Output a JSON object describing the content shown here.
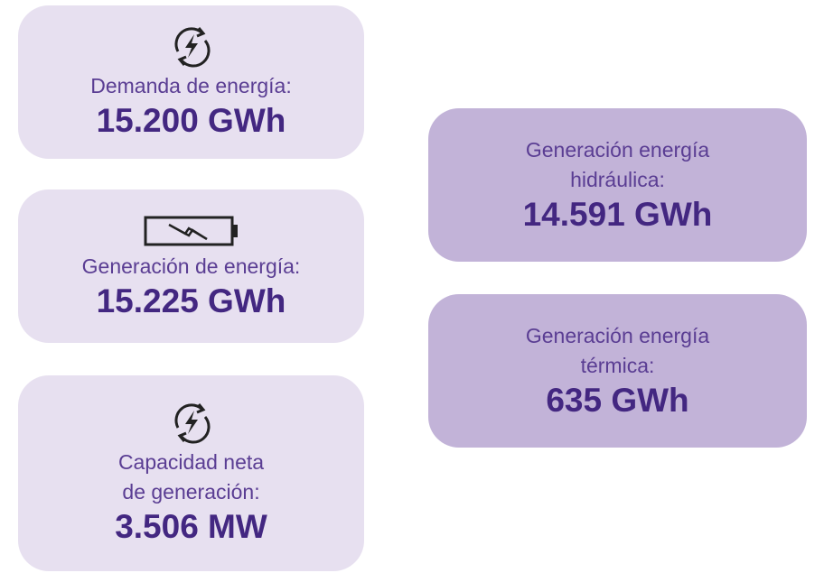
{
  "cards": [
    {
      "label": [
        "Demanda de energía:"
      ],
      "value": "15.200 GWh"
    },
    {
      "label": [
        "Generación de energía:"
      ],
      "value": "15.225 GWh"
    },
    {
      "label": [
        "Capacidad neta",
        "de generación:"
      ],
      "value": "3.506 MW"
    },
    {
      "label": [
        "Generación energía",
        "hidráulica:"
      ],
      "value": "14.591 GWh"
    },
    {
      "label": [
        "Generación energía",
        "térmica:"
      ],
      "value": "635 GWh"
    }
  ]
}
